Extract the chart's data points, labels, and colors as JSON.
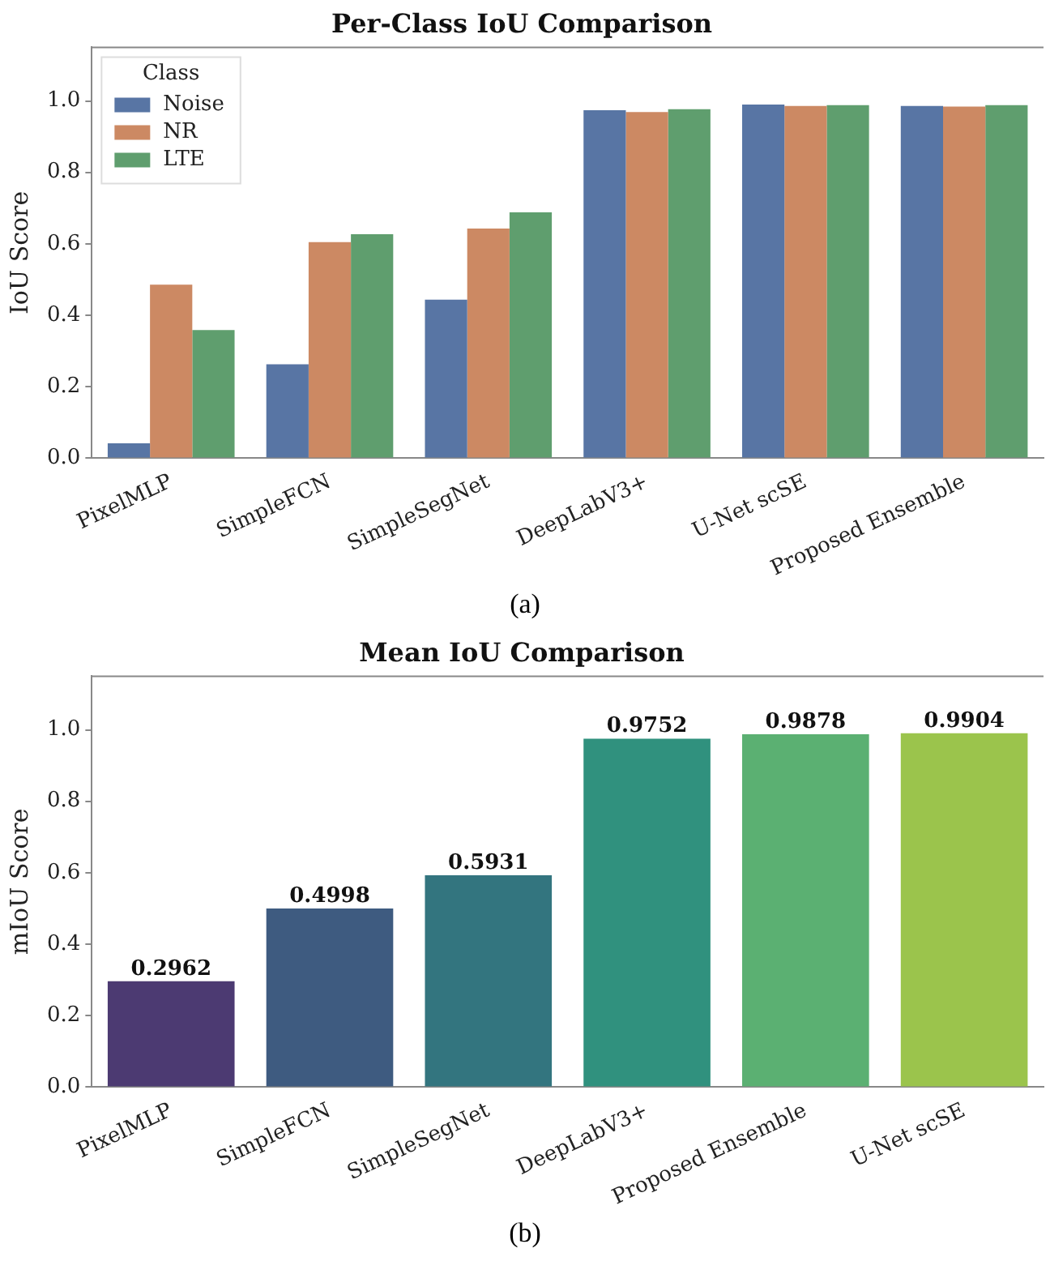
{
  "chart_data": [
    {
      "type": "bar",
      "title": "Per-Class IoU Comparison",
      "ylabel": "IoU Score",
      "legend_title": "Class",
      "legend": "top left",
      "categories": [
        "PixelMLP",
        "SimpleFCN",
        "SimpleSegNet",
        "DeepLabV3+",
        "U-Net scSE",
        "Proposed Ensemble"
      ],
      "series": [
        {
          "name": "Noise",
          "color": "#5875a4",
          "values": [
            0.042,
            0.263,
            0.444,
            0.974,
            0.99,
            0.986
          ]
        },
        {
          "name": "NR",
          "color": "#cc8963",
          "values": [
            0.486,
            0.605,
            0.643,
            0.969,
            0.986,
            0.984
          ]
        },
        {
          "name": "LTE",
          "color": "#5f9e6e",
          "values": [
            0.359,
            0.627,
            0.688,
            0.977,
            0.988,
            0.988
          ]
        }
      ],
      "ylim": [
        0,
        1.15
      ],
      "yticks": [
        {
          "value": 0,
          "label": "0.0"
        },
        {
          "value": 0.2,
          "label": "0.2"
        },
        {
          "value": 0.4,
          "label": "0.4"
        },
        {
          "value": 0.6,
          "label": "0.6"
        },
        {
          "value": 0.8,
          "label": "0.8"
        },
        {
          "value": 1,
          "label": "1.0"
        }
      ],
      "grid": false,
      "annotations": [
        "(a)"
      ]
    },
    {
      "type": "bar",
      "title": "Mean IoU Comparison",
      "ylabel": "mIoU Score",
      "categories": [
        "PixelMLP",
        "SimpleFCN",
        "SimpleSegNet",
        "DeepLabV3+",
        "Proposed Ensemble",
        "U-Net scSE"
      ],
      "values": [
        0.2962,
        0.4998,
        0.5931,
        0.9752,
        0.9878,
        0.9904
      ],
      "colors": [
        "#4c3a72",
        "#3e5b80",
        "#33757f",
        "#30917e",
        "#5bb072",
        "#9bc44c"
      ],
      "data_labels": true,
      "ylim": [
        0,
        1.15
      ],
      "yticks": [
        {
          "value": 0,
          "label": "0.0"
        },
        {
          "value": 0.2,
          "label": "0.2"
        },
        {
          "value": 0.4,
          "label": "0.4"
        },
        {
          "value": 0.6,
          "label": "0.6"
        },
        {
          "value": 0.8,
          "label": "0.8"
        },
        {
          "value": 1,
          "label": "1.0"
        }
      ],
      "grid": false,
      "legend": false,
      "annotations": [
        "(b)"
      ]
    }
  ]
}
